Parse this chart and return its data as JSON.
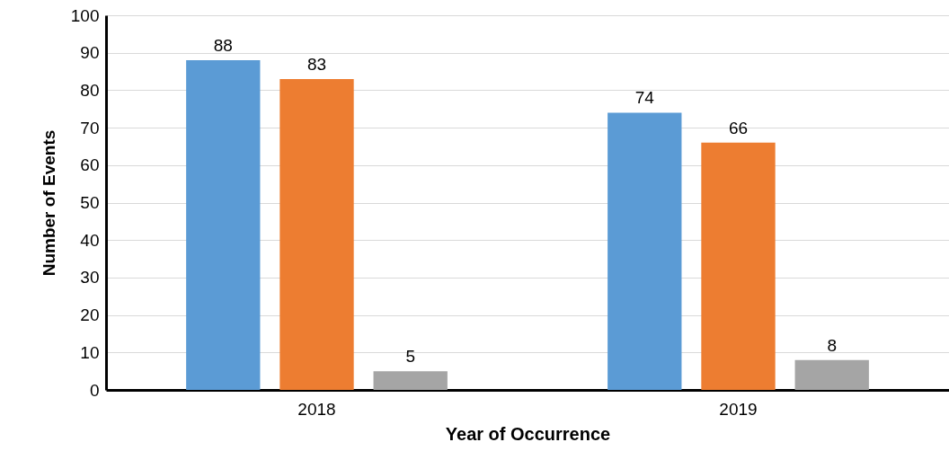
{
  "chart_data": {
    "type": "bar",
    "xlabel": "Year of Occurrence",
    "ylabel": "Number of Events",
    "categories": [
      "2018",
      "2019"
    ],
    "series": [
      {
        "color": "#5b9bd5",
        "values": [
          88,
          74
        ]
      },
      {
        "color": "#ed7d31",
        "values": [
          83,
          66
        ]
      },
      {
        "color": "#a5a5a5",
        "values": [
          5,
          8
        ]
      }
    ],
    "ylim": [
      0,
      100
    ],
    "yticks": [
      0,
      10,
      20,
      30,
      40,
      50,
      60,
      70,
      80,
      90,
      100
    ],
    "grid": "y",
    "data_labels": true
  }
}
